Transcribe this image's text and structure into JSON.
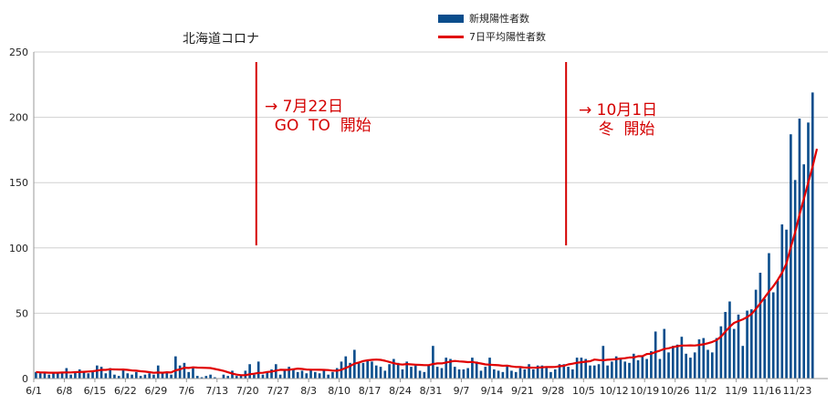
{
  "chart_data": {
    "type": "bar",
    "title": "北海道コロナ",
    "series": [
      {
        "name": "新規陽性者数",
        "type": "bar",
        "color": "#0a4d8c"
      },
      {
        "name": "7日平均陽性者数",
        "type": "line",
        "color": "#e00000"
      }
    ],
    "ylim": [
      0,
      250
    ],
    "yticks": [
      0,
      50,
      100,
      150,
      200,
      250
    ],
    "xtick_labels": [
      "6/1",
      "6/8",
      "6/15",
      "6/22",
      "6/29",
      "7/6",
      "7/13",
      "7/20",
      "7/27",
      "8/3",
      "8/10",
      "8/17",
      "8/24",
      "8/31",
      "9/7",
      "9/14",
      "9/21",
      "9/28",
      "10/5",
      "10/12",
      "10/19",
      "10/26",
      "11/2",
      "11/9",
      "11/16",
      "11/23"
    ],
    "daily_cases": [
      5,
      4,
      4,
      3,
      5,
      4,
      5,
      8,
      3,
      5,
      7,
      5,
      4,
      6,
      10,
      9,
      4,
      8,
      3,
      2,
      7,
      4,
      3,
      5,
      2,
      3,
      4,
      3,
      10,
      4,
      5,
      3,
      17,
      10,
      12,
      5,
      8,
      2,
      1,
      2,
      3,
      1,
      0,
      3,
      2,
      6,
      2,
      3,
      6,
      11,
      3,
      13,
      3,
      5,
      7,
      11,
      3,
      7,
      9,
      7,
      5,
      6,
      4,
      7,
      5,
      4,
      6,
      3,
      5,
      8,
      13,
      17,
      12,
      22,
      12,
      12,
      14,
      13,
      10,
      9,
      6,
      11,
      15,
      12,
      7,
      13,
      9,
      10,
      6,
      5,
      10,
      25,
      9,
      8,
      16,
      15,
      9,
      7,
      7,
      8,
      16,
      13,
      6,
      9,
      16,
      7,
      6,
      5,
      10,
      6,
      5,
      8,
      7,
      11,
      7,
      10,
      10,
      8,
      5,
      7,
      11,
      11,
      9,
      7,
      16,
      16,
      15,
      10,
      10,
      11,
      25,
      10,
      13,
      17,
      15,
      13,
      12,
      19,
      14,
      17,
      15,
      21,
      36,
      15,
      38,
      20,
      25,
      26,
      32,
      19,
      16,
      20,
      30,
      31,
      22,
      20,
      31,
      40,
      51,
      59,
      38,
      49,
      25,
      52,
      53,
      68,
      81,
      61,
      96,
      66,
      75,
      118,
      114,
      187,
      152,
      199,
      164,
      196,
      219
    ],
    "avg_7day": [
      5,
      4.7,
      4.6,
      4.5,
      4.5,
      4.5,
      4.6,
      4.7,
      4.7,
      4.9,
      5.0,
      5.2,
      5.4,
      5.6,
      6.1,
      6.6,
      6.6,
      7.1,
      7.0,
      6.9,
      6.9,
      6.6,
      6.2,
      6.0,
      5.6,
      5.3,
      4.9,
      4.4,
      4.6,
      4.5,
      4.8,
      4.7,
      6.3,
      7.0,
      8.3,
      8.1,
      8.6,
      8.4,
      8.3,
      8.2,
      8.0,
      7.3,
      6.6,
      5.9,
      4.8,
      3.8,
      3.0,
      2.6,
      2.6,
      3.3,
      3.7,
      4.3,
      4.4,
      5.0,
      5.3,
      6.1,
      6.7,
      6.6,
      6.7,
      7.1,
      7.6,
      7.3,
      6.9,
      6.8,
      6.8,
      6.7,
      6.6,
      6.5,
      6.1,
      6.0,
      6.7,
      8.1,
      9.6,
      11.4,
      12.3,
      13.4,
      14.0,
      14.3,
      14.5,
      14.3,
      13.6,
      12.7,
      11.7,
      11.0,
      10.7,
      11.1,
      10.8,
      10.6,
      10.5,
      10.3,
      10.3,
      11.1,
      11.6,
      11.6,
      12.3,
      13.0,
      13.5,
      13.1,
      12.9,
      12.6,
      12.7,
      12.1,
      11.5,
      10.8,
      10.6,
      10.4,
      10.2,
      9.8,
      9.9,
      9.3,
      8.9,
      8.9,
      8.4,
      8.4,
      8.3,
      8.4,
      8.6,
      8.9,
      8.8,
      8.9,
      9.4,
      9.8,
      10.8,
      11.4,
      12.1,
      12.5,
      12.9,
      13.3,
      14.5,
      14.2,
      14.0,
      14.4,
      14.6,
      14.9,
      15.3,
      15.6,
      16.1,
      16.1,
      17.1,
      17.1,
      18.8,
      19.0,
      20.3,
      21.4,
      22.6,
      23.2,
      24.1,
      24.7,
      25.3,
      25.3,
      25.4,
      25.3,
      25.8,
      26.2,
      27.0,
      28.0,
      29.4,
      32.1,
      35.9,
      39.6,
      42.6,
      44.0,
      45.3,
      47.1,
      49.4,
      53.2,
      57.6,
      62.0,
      66.6,
      70.6,
      75.4,
      81.0,
      88.0,
      100.6,
      111.8,
      125.4,
      137.6,
      150.0,
      162.3,
      175.9
    ]
  },
  "annotations": [
    {
      "id": "ann1",
      "text": "→ 7月22日\n  GO  TO  開始",
      "day": 51
    },
    {
      "id": "ann2",
      "text": "→ 10月1日\n    冬  開始",
      "day": 122
    }
  ]
}
